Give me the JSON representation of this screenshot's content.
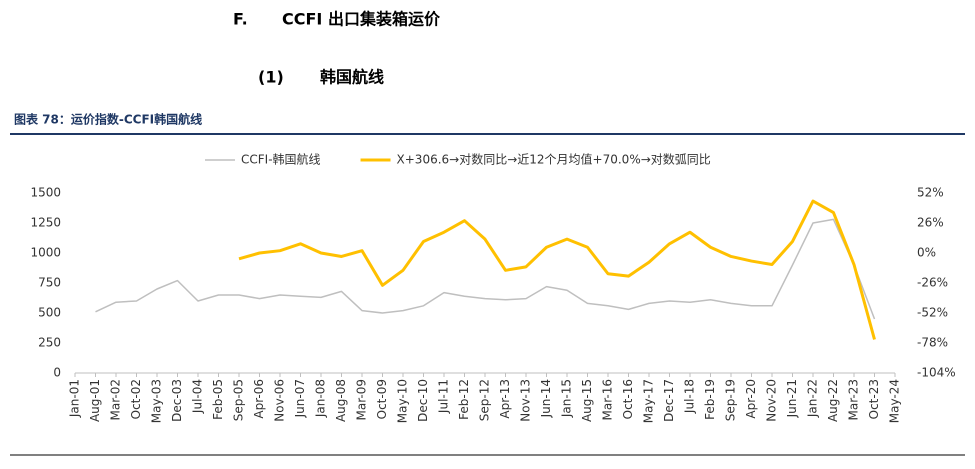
{
  "header": {
    "section": "F.",
    "section_title": "CCFI 出口集装箱运价",
    "sub": "(1)",
    "sub_title": "韩国航线",
    "figure_title": "图表 78：运价指数-CCFI韩国航线"
  },
  "chart_data": {
    "type": "line",
    "categories": [
      "Jan-01",
      "Aug-01",
      "Mar-02",
      "Oct-02",
      "May-03",
      "Dec-03",
      "Jul-04",
      "Feb-05",
      "Sep-05",
      "Apr-06",
      "Nov-06",
      "Jun-07",
      "Jan-08",
      "Aug-08",
      "Mar-09",
      "Oct-09",
      "May-10",
      "Dec-10",
      "Jul-11",
      "Feb-12",
      "Sep-12",
      "Apr-13",
      "Nov-13",
      "Jun-14",
      "Jan-15",
      "Aug-15",
      "Mar-16",
      "Oct-16",
      "May-17",
      "Dec-17",
      "Jul-18",
      "Feb-19",
      "Sep-19",
      "Apr-20",
      "Nov-20",
      "Jun-21",
      "Jan-22",
      "Aug-22",
      "Mar-23",
      "Oct-23",
      "May-24"
    ],
    "series": [
      {
        "name": "CCFI-韩国航线",
        "color": "#bfbfbf",
        "values": [
          null,
          510,
          590,
          600,
          700,
          770,
          600,
          650,
          650,
          620,
          650,
          640,
          630,
          680,
          520,
          500,
          520,
          560,
          670,
          640,
          620,
          610,
          620,
          720,
          690,
          580,
          560,
          530,
          580,
          600,
          590,
          610,
          580,
          560,
          560,
          900,
          1250,
          1280,
          900,
          450,
          null
        ]
      },
      {
        "name": "X+306.6→对数同比→近12个月均值+70.0%→对数弧同比",
        "color": "#ffc000",
        "axis": "y2",
        "values": [
          null,
          null,
          null,
          null,
          null,
          null,
          null,
          null,
          -5,
          0,
          2,
          8,
          0,
          -3,
          2,
          -28,
          -15,
          10,
          18,
          28,
          12,
          -15,
          -12,
          5,
          12,
          5,
          -18,
          -20,
          -8,
          8,
          18,
          5,
          -3,
          -7,
          -10,
          10,
          45,
          35,
          -10,
          -75,
          null
        ]
      }
    ],
    "ylim": [
      0,
      1500
    ],
    "yticks": [
      0,
      250,
      500,
      750,
      1000,
      1250,
      1500
    ],
    "y2lim": [
      -104,
      52
    ],
    "y2ticks": [
      {
        "value": -104,
        "label": "-104%"
      },
      {
        "value": -78,
        "label": "-78%"
      },
      {
        "value": -52,
        "label": "-52%"
      },
      {
        "value": -26,
        "label": "-26%"
      },
      {
        "value": 0,
        "label": "0%"
      },
      {
        "value": 26,
        "label": "26%"
      },
      {
        "value": 52,
        "label": "52%"
      }
    ],
    "legend": "top",
    "grid": false
  }
}
